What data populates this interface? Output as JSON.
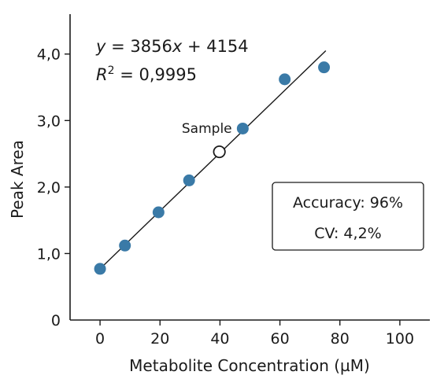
{
  "chart_data": {
    "type": "scatter",
    "title": "",
    "xlabel": "Metabolite Concentration (µM)",
    "ylabel": "Peak Area",
    "xlim": [
      -10,
      110
    ],
    "ylim": [
      0,
      4.6
    ],
    "x_ticks": [
      0,
      20,
      40,
      60,
      80,
      100
    ],
    "x_tick_labels": [
      "0",
      "20",
      "40",
      "60",
      "80",
      "100"
    ],
    "y_ticks": [
      0,
      1,
      2,
      3,
      4
    ],
    "y_tick_labels": [
      "0",
      "1,0",
      "2,0",
      "3,0",
      "4,0"
    ],
    "grid": false,
    "series": [
      {
        "color": "#3a7aa7",
        "marker": "filled-circle",
        "points": [
          {
            "x": 0,
            "y": 0.77
          },
          {
            "x": 8.3,
            "y": 1.12
          },
          {
            "x": 19.5,
            "y": 1.62
          },
          {
            "x": 29.7,
            "y": 2.1
          },
          {
            "x": 47.6,
            "y": 2.88
          },
          {
            "x": 61.6,
            "y": 3.62
          },
          {
            "x": 74.7,
            "y": 3.8
          }
        ]
      }
    ],
    "sample_point": {
      "x": 39.8,
      "y": 2.53,
      "label": "Sample",
      "marker": "open-circle"
    },
    "fit_line": {
      "x_start": 0,
      "y_start": 0.77,
      "x_end": 75.3,
      "y_end": 4.05,
      "color": "#1a1a1a"
    },
    "equation": {
      "y_var": "y",
      "eq_rest": " = 3856",
      "x_var": "x",
      "eq_tail": " + 4154"
    },
    "r_squared": {
      "var": "R",
      "exp": "2",
      "value": " = 0,9995"
    },
    "stats_box": {
      "accuracy": "Accuracy: 96%",
      "cv": "CV: 4,2%"
    }
  }
}
